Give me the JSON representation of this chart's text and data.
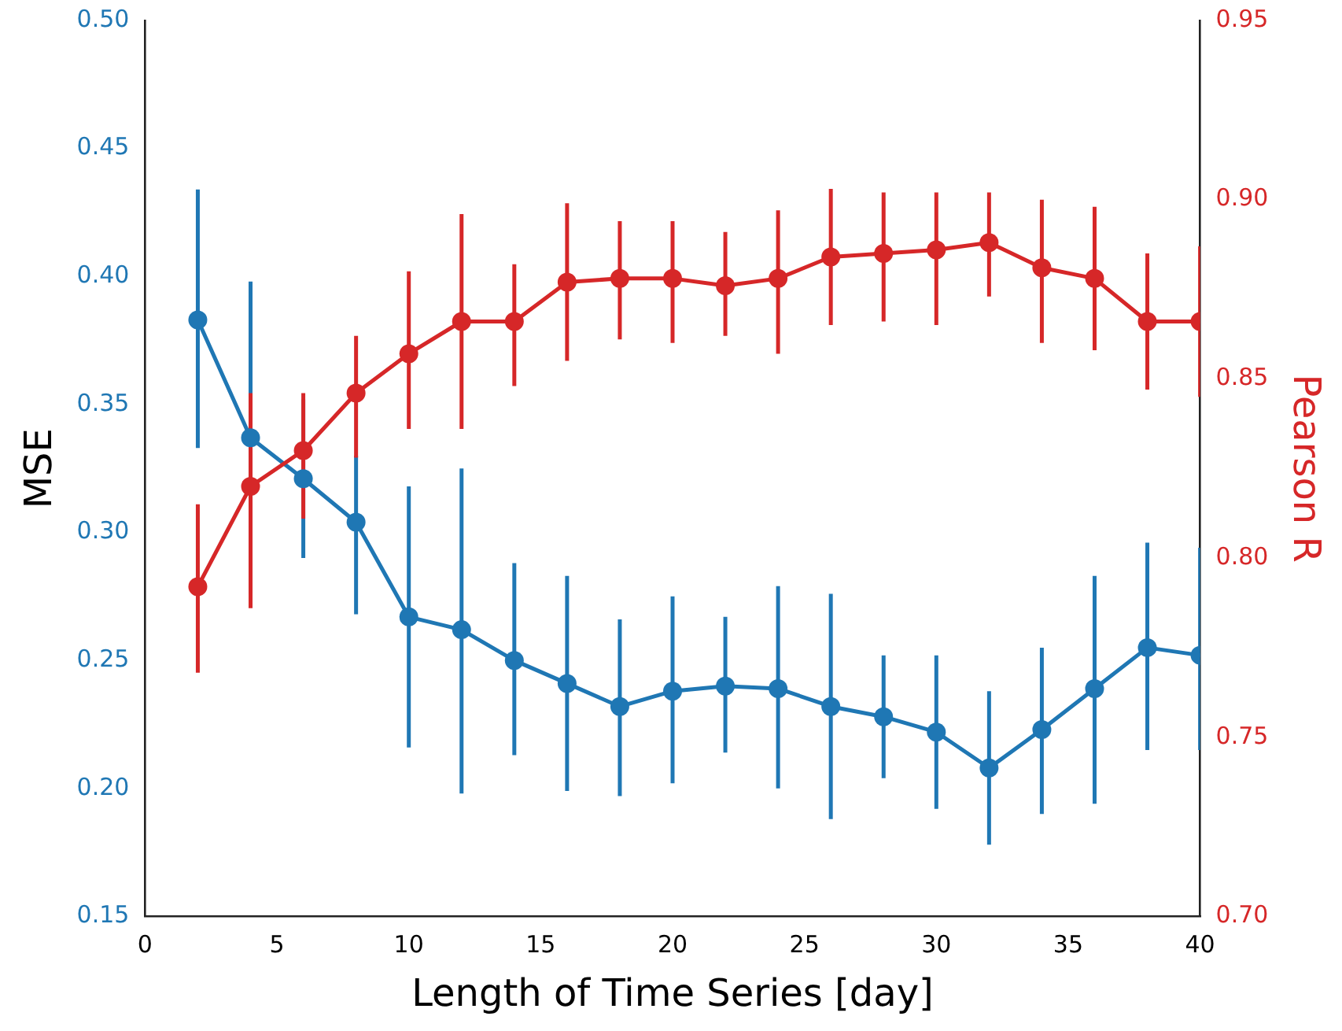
{
  "chart_data": {
    "type": "line",
    "xlabel": "Length of Time Series [day]",
    "ylabel": "MSE",
    "y2label": "Pearson R",
    "x": [
      2,
      4,
      6,
      8,
      10,
      12,
      14,
      16,
      18,
      20,
      22,
      24,
      26,
      28,
      30,
      32,
      34,
      36,
      38,
      40
    ],
    "xlim": [
      0,
      40
    ],
    "xticks": [
      0,
      5,
      10,
      15,
      20,
      25,
      30,
      35,
      40
    ],
    "ylim": [
      0.15,
      0.5
    ],
    "yticks": [
      0.15,
      {
        "value": 0.2,
        "label": "0.20"
      },
      0.25,
      {
        "value": 0.3,
        "label": "0.30"
      },
      0.35,
      {
        "value": 0.4,
        "label": "0.40"
      },
      0.45,
      {
        "value": 0.5,
        "label": "0.50"
      }
    ],
    "y2lim": [
      0.7,
      0.95
    ],
    "y2ticks": [
      {
        "value": 0.7,
        "label": "0.70"
      },
      0.75,
      {
        "value": 0.8,
        "label": "0.80"
      },
      0.85,
      {
        "value": 0.9,
        "label": "0.90"
      },
      0.95
    ],
    "grid": false,
    "legend": false,
    "marker": "circle",
    "line_style": "solid",
    "series": [
      {
        "color": "#1f77b4",
        "values": [
          0.383,
          0.337,
          0.321,
          0.304,
          0.267,
          0.262,
          0.25,
          0.241,
          0.232,
          0.238,
          0.24,
          0.239,
          0.232,
          0.228,
          0.222,
          0.208,
          0.223,
          0.239,
          0.255,
          0.252
        ],
        "errors": [
          [
            0.333,
            0.434
          ],
          [
            0.276,
            0.398
          ],
          [
            0.29,
            0.352
          ],
          [
            0.268,
            0.33
          ],
          [
            0.216,
            0.318
          ],
          [
            0.198,
            0.325
          ],
          [
            0.213,
            0.288
          ],
          [
            0.199,
            0.283
          ],
          [
            0.197,
            0.266
          ],
          [
            0.202,
            0.275
          ],
          [
            0.214,
            0.267
          ],
          [
            0.2,
            0.279
          ],
          [
            0.188,
            0.276
          ],
          [
            0.204,
            0.252
          ],
          [
            0.192,
            0.252
          ],
          [
            0.178,
            0.238
          ],
          [
            0.19,
            0.255
          ],
          [
            0.194,
            0.283
          ],
          [
            0.215,
            0.296
          ],
          [
            0.215,
            0.294
          ]
        ]
      },
      {
        "color": "#d62728",
        "axis": "y2",
        "values": [
          0.792,
          0.82,
          0.83,
          0.846,
          0.857,
          0.866,
          0.866,
          0.877,
          0.878,
          0.878,
          0.876,
          0.878,
          0.884,
          0.885,
          0.886,
          0.888,
          0.881,
          0.878,
          0.866,
          0.866
        ],
        "errors": [
          [
            0.768,
            0.815
          ],
          [
            0.786,
            0.846
          ],
          [
            0.811,
            0.846
          ],
          [
            0.828,
            0.862
          ],
          [
            0.836,
            0.88
          ],
          [
            0.836,
            0.896
          ],
          [
            0.848,
            0.882
          ],
          [
            0.855,
            0.899
          ],
          [
            0.861,
            0.894
          ],
          [
            0.86,
            0.894
          ],
          [
            0.862,
            0.891
          ],
          [
            0.857,
            0.897
          ],
          [
            0.865,
            0.903
          ],
          [
            0.866,
            0.902
          ],
          [
            0.865,
            0.902
          ],
          [
            0.873,
            0.902
          ],
          [
            0.86,
            0.9
          ],
          [
            0.858,
            0.898
          ],
          [
            0.847,
            0.885
          ],
          [
            0.845,
            0.887
          ]
        ]
      }
    ]
  }
}
